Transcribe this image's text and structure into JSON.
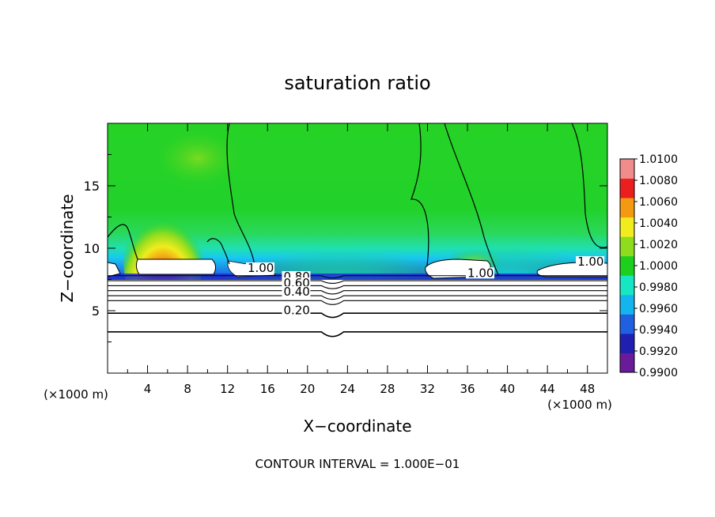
{
  "chart_data": {
    "type": "heatmap",
    "title": "saturation ratio",
    "xlabel": "X−coordinate",
    "ylabel": "Z−coordinate",
    "x_unit_left": "(×1000 m)",
    "x_unit_right": "(×1000 m)",
    "footer": "CONTOUR INTERVAL = 1.000E−01",
    "xlim": [
      0,
      50
    ],
    "ylim": [
      0,
      20
    ],
    "x_ticks": [
      4,
      8,
      12,
      16,
      20,
      24,
      28,
      32,
      36,
      40,
      44,
      48
    ],
    "y_ticks": [
      5,
      10,
      15
    ],
    "colorbar": {
      "levels": [
        "0.9900",
        "0.9920",
        "0.9940",
        "0.9960",
        "0.9980",
        "1.0000",
        "1.0020",
        "1.0040",
        "1.0060",
        "1.0080",
        "1.0100"
      ],
      "colors": [
        "#6a1b9a",
        "#1f1fb0",
        "#1f5fe0",
        "#14b4ee",
        "#16e6c4",
        "#1ed01e",
        "#8fdc1e",
        "#f0ec1e",
        "#f39a12",
        "#ec1f1f",
        "#f08c8c"
      ]
    },
    "contour_labels": [
      {
        "text": "1.00",
        "x": 14.0,
        "y": 8.1
      },
      {
        "text": "0.80",
        "x": 17.6,
        "y": 7.4
      },
      {
        "text": "0.60",
        "x": 17.6,
        "y": 6.9
      },
      {
        "text": "0.40",
        "x": 17.6,
        "y": 6.2
      },
      {
        "text": "0.20",
        "x": 17.6,
        "y": 4.7
      },
      {
        "text": "1.00",
        "x": 36.0,
        "y": 7.7
      },
      {
        "text": "1.00",
        "x": 47.0,
        "y": 8.6
      }
    ],
    "horizontal_contours": [
      7.8,
      7.4,
      7.0,
      6.6,
      6.2,
      5.8,
      4.8,
      3.3
    ]
  }
}
